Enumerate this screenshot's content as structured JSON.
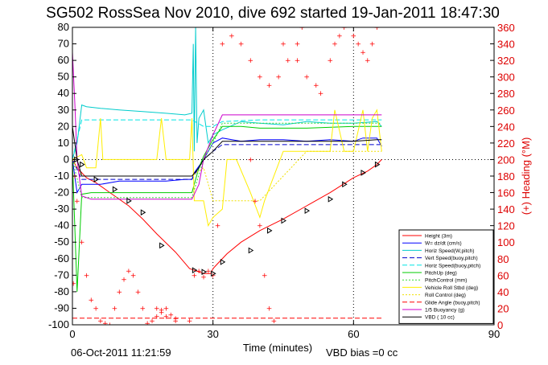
{
  "figure": {
    "title": "SG502 RossSea Nov 2010, dive 692 started 19-Jan-2011 18:47:30",
    "timestamp": "06-Oct-2011 11:21:59",
    "footnote": "VBD bias =0 cc"
  },
  "chart_data": {
    "type": "line",
    "xlabel": "Time (minutes)",
    "ylabel": "",
    "y2label": "(+) Heading (°M)",
    "xlim": [
      0,
      90
    ],
    "ylim": [
      -100,
      80
    ],
    "y2lim": [
      0,
      360
    ],
    "xticks": [
      0,
      30,
      60,
      90
    ],
    "yticks": [
      80,
      70,
      60,
      50,
      40,
      30,
      20,
      10,
      0,
      -10,
      -20,
      -30,
      -40,
      -50,
      -60,
      -70,
      -80,
      -90,
      -100
    ],
    "y2ticks": [
      360,
      340,
      320,
      300,
      280,
      260,
      240,
      220,
      200,
      180,
      160,
      140,
      120,
      100,
      80,
      60,
      40,
      20,
      0
    ],
    "grid": true,
    "legend_position": "bottom-right",
    "colors": {
      "height": "#ff0000",
      "w": "#0000ff",
      "horiz_w": "#00cccc",
      "vert_buoy": "#0000cc",
      "horiz_buoy": "#00e5e5",
      "pitch": "#00cc00",
      "pitch_control": "#33dd33",
      "roll": "#ffee00",
      "roll_control": "#f0e000",
      "glide": "#ff0000",
      "buoyancy": "#cc00cc",
      "vbd": "#000000",
      "heading": "#ff0000",
      "axis_right": "#dd0000"
    },
    "series": [
      {
        "name": "Height (3m)",
        "color": "#ff0000",
        "dash": "",
        "x": [
          0,
          1,
          3,
          5,
          8,
          12,
          15,
          18,
          22,
          25,
          28,
          29.5,
          30,
          31,
          33,
          36,
          40,
          45,
          50,
          55,
          60,
          63,
          65,
          66
        ],
        "y": [
          0,
          -5,
          -11,
          -14,
          -20,
          -28,
          -36,
          -45,
          -56,
          -66,
          -69,
          -69,
          -66,
          -63,
          -57,
          -50,
          -43,
          -36,
          -28,
          -20,
          -11,
          -7,
          -3,
          0
        ]
      },
      {
        "name": "W= dz/dt (cm/s)",
        "color": "#0000ff",
        "dash": "",
        "x": [
          0,
          1,
          2,
          3,
          6,
          10,
          15,
          20,
          24,
          25.5,
          26,
          28,
          30,
          32,
          36,
          40,
          45,
          50,
          55,
          60,
          62,
          65,
          66
        ],
        "y": [
          0,
          -20,
          -15,
          -15,
          -15,
          -13,
          -13,
          -13,
          -12,
          -12,
          -8,
          0,
          10,
          13,
          11,
          12,
          12,
          11,
          12,
          11,
          13,
          13,
          8
        ]
      },
      {
        "name": "Horiz Speed(W,pitch)",
        "color": "#00cccc",
        "dash": "",
        "x": [
          0,
          1,
          2,
          3,
          6,
          10,
          15,
          20,
          24,
          25.5,
          25.8,
          26,
          26.3,
          26.6,
          27,
          28,
          29,
          30,
          32,
          36,
          40,
          45,
          50,
          55,
          60,
          65,
          66
        ],
        "y": [
          0,
          10,
          33,
          32,
          31,
          30,
          29,
          28,
          27,
          28,
          70,
          5,
          80,
          10,
          25,
          30,
          10,
          15,
          18,
          23,
          22,
          21,
          23,
          22,
          22,
          23,
          20
        ]
      },
      {
        "name": "Vert Speed(buoy,pitch)",
        "color": "#0000cc",
        "dash": "6,3",
        "x": [
          0,
          2,
          5,
          10,
          20,
          25.5,
          28,
          30,
          32,
          40,
          50,
          60,
          66
        ],
        "y": [
          0,
          -12,
          -12,
          -12,
          -12,
          -12,
          0,
          5,
          9,
          9,
          9,
          9,
          9
        ]
      },
      {
        "name": "Horiz Speed(buoy,pitch)",
        "color": "#00e5e5",
        "dash": "6,3",
        "x": [
          0,
          2,
          5,
          10,
          20,
          25.5,
          28,
          30,
          32,
          40,
          50,
          60,
          66
        ],
        "y": [
          0,
          24,
          24,
          24,
          24,
          24,
          20,
          20,
          23,
          24,
          24,
          24,
          24
        ]
      },
      {
        "name": "PitchUp (deg)",
        "color": "#00cc00",
        "dash": "",
        "x": [
          0,
          1,
          2,
          4,
          10,
          20,
          25.5,
          27,
          28,
          30,
          32,
          36,
          40,
          50,
          60,
          66
        ],
        "y": [
          0,
          -80,
          -21,
          -20,
          -20,
          -20,
          -20,
          -5,
          2,
          12,
          20,
          20,
          19,
          19,
          20,
          20
        ]
      },
      {
        "name": "PitchControl (mm)",
        "color": "#33dd33",
        "dash": "2,2",
        "x": [
          0,
          2,
          10,
          25.5,
          28,
          30,
          32,
          66
        ],
        "y": [
          0,
          -23,
          -23,
          -23,
          0,
          10,
          22,
          22
        ]
      },
      {
        "name": "Vehicle Roll Stbd (deg)",
        "color": "#ffee00",
        "dash": "",
        "x": [
          0,
          2,
          3,
          5,
          6,
          6.5,
          10,
          12,
          18,
          19,
          20,
          25,
          25.5,
          26,
          28,
          29,
          30,
          32,
          33,
          35,
          38,
          40,
          41,
          45,
          50,
          55,
          56,
          58,
          60,
          62,
          63,
          64,
          65,
          66
        ],
        "y": [
          0,
          3,
          -5,
          -5,
          25,
          0,
          0,
          0,
          0,
          25,
          0,
          0,
          25,
          -25,
          -25,
          -40,
          -35,
          -30,
          0,
          0,
          -20,
          -35,
          -25,
          5,
          5,
          5,
          30,
          5,
          5,
          30,
          5,
          25,
          30,
          5
        ]
      },
      {
        "name": "Roll Control (deg)",
        "color": "#f0e000",
        "dash": "2,2",
        "x": [
          0,
          2,
          10,
          20,
          25.5,
          28,
          30,
          35,
          40,
          50,
          60,
          66
        ],
        "y": [
          0,
          -10,
          -10,
          -10,
          -10,
          -5,
          -25,
          -25,
          -25,
          5,
          5,
          5
        ]
      },
      {
        "name": "Glide Angle (buoy,pitch)",
        "color": "#ff0000",
        "dash": "6,3",
        "x": [
          0,
          66
        ],
        "y": [
          -96,
          -96
        ]
      },
      {
        "name": "1/5 Buoyancy (g)",
        "color": "#cc00cc",
        "dash": "",
        "x": [
          0,
          0.5,
          1,
          2,
          4,
          10,
          20,
          25.5,
          27,
          28,
          30,
          32,
          40,
          50,
          60,
          65,
          66
        ],
        "y": [
          65,
          35,
          0,
          -22,
          -24,
          -24,
          -24,
          -24,
          -15,
          0,
          15,
          27,
          27,
          27,
          27,
          27,
          27
        ]
      },
      {
        "name": "VBD ( 10 cc)",
        "color": "#000000",
        "dash": "",
        "x": [
          0,
          0.5,
          1,
          2,
          4,
          10,
          20,
          25.5,
          27,
          28,
          30,
          32,
          40,
          50,
          60,
          65,
          66
        ],
        "y": [
          20,
          10,
          0,
          -10,
          -10,
          -10,
          -10,
          -10,
          -5,
          0,
          5,
          11,
          11,
          11,
          11,
          12,
          12
        ]
      }
    ],
    "heading": {
      "name": "(+) Heading (°M)",
      "color": "#ff0000",
      "points": [
        [
          0.2,
          50
        ],
        [
          0.5,
          180
        ],
        [
          1,
          150
        ],
        [
          2,
          100
        ],
        [
          3,
          60
        ],
        [
          4,
          30
        ],
        [
          5,
          20
        ],
        [
          6,
          5
        ],
        [
          7,
          2
        ],
        [
          8,
          0
        ],
        [
          9,
          20
        ],
        [
          10,
          40
        ],
        [
          11,
          55
        ],
        [
          12,
          65
        ],
        [
          13,
          60
        ],
        [
          14,
          40
        ],
        [
          15,
          20
        ],
        [
          16,
          2
        ],
        [
          17,
          5
        ],
        [
          18,
          10
        ],
        [
          19,
          15
        ],
        [
          20,
          10
        ],
        [
          22,
          5
        ],
        [
          25,
          5
        ],
        [
          18,
          20
        ],
        [
          19,
          18
        ],
        [
          20,
          20
        ],
        [
          21,
          12
        ],
        [
          22,
          8
        ],
        [
          26,
          60
        ],
        [
          27,
          65
        ],
        [
          28,
          58
        ],
        [
          29,
          65
        ],
        [
          30,
          60
        ],
        [
          31,
          120
        ],
        [
          32,
          340
        ],
        [
          34,
          350
        ],
        [
          36,
          340
        ],
        [
          38,
          320
        ],
        [
          40,
          300
        ],
        [
          42,
          290
        ],
        [
          44,
          300
        ],
        [
          46,
          320
        ],
        [
          48,
          340
        ],
        [
          49,
          360
        ],
        [
          38,
          200
        ],
        [
          39,
          150
        ],
        [
          40,
          120
        ],
        [
          41,
          60
        ],
        [
          42,
          20
        ],
        [
          43,
          5
        ],
        [
          45,
          340
        ],
        [
          48,
          320
        ],
        [
          50,
          300
        ],
        [
          52,
          290
        ],
        [
          53,
          280
        ],
        [
          55,
          320
        ],
        [
          56,
          340
        ],
        [
          57,
          350
        ],
        [
          58,
          360
        ],
        [
          60,
          350
        ],
        [
          61,
          340
        ],
        [
          62,
          330
        ],
        [
          63,
          320
        ],
        [
          64,
          340
        ],
        [
          65,
          360
        ]
      ]
    },
    "markers": {
      "label": "pitch markers",
      "x": [
        0.8,
        2,
        5,
        9,
        12,
        15,
        19,
        26,
        28,
        30,
        32,
        38,
        42,
        45,
        50,
        55,
        58,
        62,
        65
      ],
      "y": [
        0,
        -3,
        -12,
        -18,
        -25,
        -32,
        -52,
        -67,
        -68,
        -69,
        -62,
        -55,
        -43,
        -37,
        -31,
        -24,
        -15,
        -8,
        -3
      ]
    }
  }
}
